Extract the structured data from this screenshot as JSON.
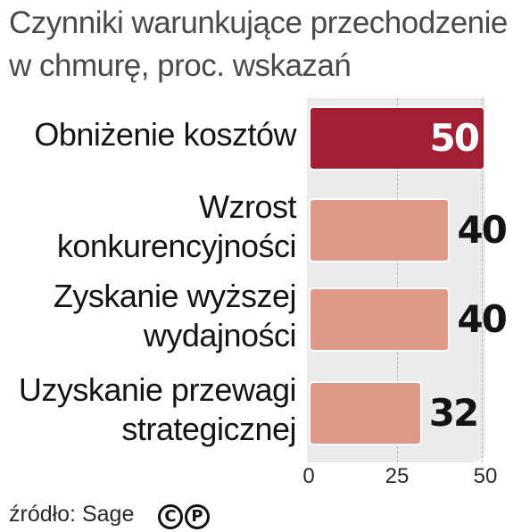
{
  "title": "Czynniki warunkujące przechodzenie\nw chmurę, proc. wskazań",
  "source": "źródło: Sage",
  "license_icons": [
    {
      "name": "copyright-icon",
      "glyph": "C"
    },
    {
      "name": "press-icon",
      "glyph": "P"
    }
  ],
  "colors": {
    "highlight_bar": "#a31f33",
    "normal_bar": "#de9988",
    "plot_background": "#ebebeb"
  },
  "chart_data": {
    "type": "bar",
    "orientation": "horizontal",
    "categories": [
      "Obniżenie kosztów",
      "Wzrost\nkonkurencyjności",
      "Zyskanie wyższej\nwydajności",
      "Uzyskanie przewagi\nstrategicznej"
    ],
    "values": [
      50,
      40,
      40,
      32
    ],
    "value_labels": [
      "50",
      "40",
      "40",
      "32"
    ],
    "highlighted_index": 0,
    "xlim": [
      0,
      50
    ],
    "xticks": [
      0,
      25,
      50
    ],
    "xtick_labels": [
      "0",
      "25",
      "50"
    ],
    "grid": true
  }
}
